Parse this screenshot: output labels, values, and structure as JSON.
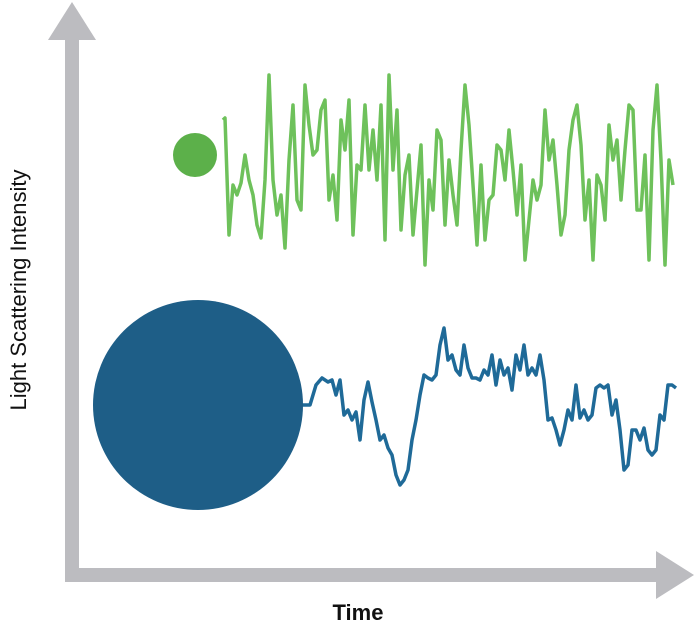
{
  "y_axis_label": "Light Scattering Intensity",
  "x_axis_label": "Time"
}
